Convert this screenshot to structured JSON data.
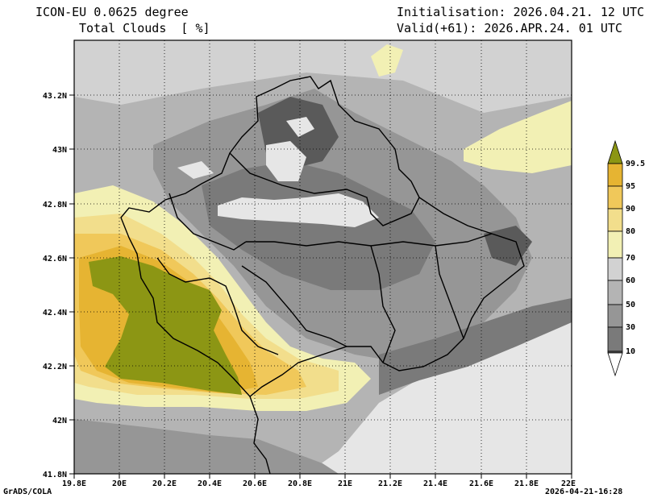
{
  "header": {
    "model": "ICON-EU 0.0625 degree",
    "variable": "Total Clouds  [ %]",
    "init": "Initialisation: 2026.04.21. 12 UTC",
    "valid": "Valid(+61): 2026.APR.24. 01 UTC"
  },
  "axes": {
    "lat_labels": [
      "43.2N",
      "43N",
      "42.8N",
      "42.6N",
      "42.4N",
      "42.2N",
      "42N",
      "41.8N"
    ],
    "lon_labels": [
      "19.8E",
      "20E",
      "20.2E",
      "20.4E",
      "20.6E",
      "20.8E",
      "21E",
      "21.2E",
      "21.4E",
      "21.6E",
      "21.8E",
      "22E"
    ]
  },
  "colorbar": {
    "levels": [
      "99.5",
      "95",
      "90",
      "80",
      "70",
      "60",
      "50",
      "30",
      "10"
    ],
    "colors": [
      "#ffffff",
      "#5a5a5a",
      "#7a7a7a",
      "#969696",
      "#b4b4b4",
      "#d2d2d2",
      "#f2f0b4",
      "#f2de8c",
      "#f0c85a",
      "#e6b432",
      "#8c9614"
    ]
  },
  "footer": {
    "left": "GrADS/COLA",
    "right": "2026-04-21-16:28"
  }
}
